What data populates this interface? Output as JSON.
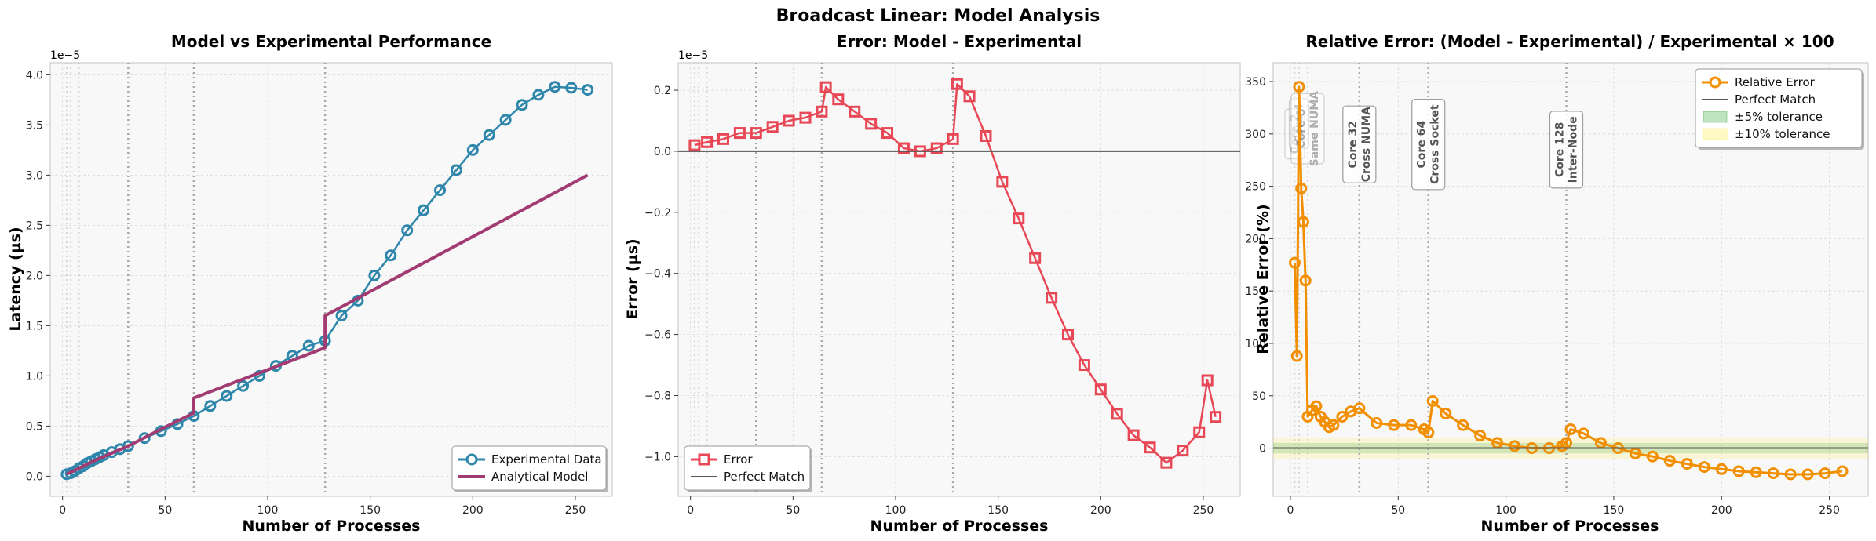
{
  "figure": {
    "suptitle": "Broadcast Linear: Model Analysis"
  },
  "colors": {
    "experimental": "#2e86ab",
    "model": "#a23b72",
    "error": "#e84855",
    "relative": "#f18f01",
    "perfect": "#555555",
    "panel_bg": "#f8f8f8",
    "marker_line": "#9e9e9e"
  },
  "chart_data": [
    {
      "type": "line",
      "title": "Model vs Experimental Performance",
      "xlabel": "Number of Processes",
      "ylabel": "Latency (µs)",
      "offset_text": "1e−5",
      "xlim": [
        -6,
        268
      ],
      "ylim": [
        -2e-06,
        4.12e-05
      ],
      "xticks": [
        0,
        50,
        100,
        150,
        200,
        250
      ],
      "yticks": [
        0,
        5e-06,
        1e-05,
        1.5e-05,
        2e-05,
        2.5e-05,
        3e-05,
        3.5e-05,
        4e-05
      ],
      "ytick_labels": [
        "0.0",
        "0.5",
        "1.0",
        "1.5",
        "2.0",
        "2.5",
        "3.0",
        "3.5",
        "4.0"
      ],
      "grid": true,
      "legend": {
        "position": "lower-right",
        "entries": [
          "Experimental Data",
          "Analytical Model"
        ]
      },
      "markers": [
        {
          "x": 2,
          "label": "Core 2",
          "tier": 3.5
        },
        {
          "x": 4,
          "label": "Core 4",
          "tier": 3.55
        },
        {
          "x": 8,
          "label": "Core 8\nSame NUMA",
          "tier": 3.5
        },
        {
          "x": 32,
          "label": "Core 32\nCross NUMA",
          "tier": 3.45
        },
        {
          "x": 64,
          "label": "Core 64\nCross Socket",
          "tier": 3.45
        },
        {
          "x": 128,
          "label": "Core 128\nInter-Node",
          "tier": 3.35
        }
      ],
      "series": [
        {
          "name": "Experimental Data",
          "x": [
            2,
            4,
            6,
            8,
            10,
            12,
            14,
            16,
            18,
            20,
            24,
            28,
            32,
            40,
            48,
            56,
            64,
            72,
            80,
            88,
            96,
            104,
            112,
            120,
            128,
            136,
            144,
            152,
            160,
            168,
            176,
            184,
            192,
            200,
            208,
            216,
            224,
            232,
            240,
            248,
            256
          ],
          "y": [
            2e-07,
            3e-07,
            5e-07,
            8e-07,
            1e-06,
            1.3e-06,
            1.5e-06,
            1.7e-06,
            1.9e-06,
            2.1e-06,
            2.4e-06,
            2.7e-06,
            3e-06,
            3.8e-06,
            4.5e-06,
            5.2e-06,
            6e-06,
            7e-06,
            8e-06,
            9e-06,
            1e-05,
            1.1e-05,
            1.2e-05,
            1.3e-05,
            1.35e-05,
            1.6e-05,
            1.75e-05,
            2e-05,
            2.2e-05,
            2.45e-05,
            2.65e-05,
            2.85e-05,
            3.05e-05,
            3.25e-05,
            3.4e-05,
            3.55e-05,
            3.7e-05,
            3.8e-05,
            3.88e-05,
            3.87e-05,
            3.85e-05
          ]
        },
        {
          "name": "Analytical Model",
          "x": [
            2,
            8,
            16,
            32,
            48,
            64,
            64,
            96,
            128,
            128,
            160,
            192,
            224,
            256
          ],
          "y": [
            2e-07,
            8e-07,
            1.6e-06,
            3e-06,
            4.7e-06,
            6.3e-06,
            7.8e-06,
            1.03e-05,
            1.28e-05,
            1.6e-05,
            1.95e-05,
            2.3e-05,
            2.65e-05,
            3e-05
          ]
        }
      ]
    },
    {
      "type": "line",
      "title": "Error: Model - Experimental",
      "xlabel": "Number of Processes",
      "ylabel": "Error (µs)",
      "offset_text": "1e−5",
      "xlim": [
        -6,
        268
      ],
      "ylim": [
        -1.13e-05,
        2.9e-06
      ],
      "xticks": [
        0,
        50,
        100,
        150,
        200,
        250
      ],
      "yticks": [
        -1e-05,
        -8e-06,
        -6e-06,
        -4e-06,
        -2e-06,
        0,
        2e-06
      ],
      "ytick_labels": [
        "−1.0",
        "−0.8",
        "−0.6",
        "−0.4",
        "−0.2",
        "0.0",
        "0.2"
      ],
      "grid": true,
      "legend": {
        "position": "lower-left",
        "entries": [
          "Error",
          "Perfect Match"
        ]
      },
      "markers": [
        {
          "x": 2,
          "label": "Core 2",
          "tier": 0.22
        },
        {
          "x": 4,
          "label": "Core 4",
          "tier": 0.24
        },
        {
          "x": 8,
          "label": "Core 8\nSame NUMA",
          "tier": 0.22
        },
        {
          "x": 32,
          "label": "Core 32\nCross NUMA",
          "tier": 0.22
        },
        {
          "x": 64,
          "label": "Core 64\nCross Socket",
          "tier": 0.22
        },
        {
          "x": 128,
          "label": "Core 128\nInter-Node",
          "tier": 0.24
        }
      ],
      "series": [
        {
          "name": "Error",
          "x": [
            2,
            8,
            16,
            24,
            32,
            40,
            48,
            56,
            64,
            66,
            72,
            80,
            88,
            96,
            104,
            112,
            120,
            128,
            130,
            136,
            144,
            152,
            160,
            168,
            176,
            184,
            192,
            200,
            208,
            216,
            224,
            232,
            240,
            248,
            252,
            256
          ],
          "y": [
            2e-07,
            3e-07,
            4e-07,
            6e-07,
            6e-07,
            8e-07,
            1e-06,
            1.1e-06,
            1.3e-06,
            2.1e-06,
            1.7e-06,
            1.3e-06,
            9e-07,
            6e-07,
            1e-07,
            0,
            1e-07,
            4e-07,
            2.2e-06,
            1.8e-06,
            5e-07,
            -1e-06,
            -2.2e-06,
            -3.5e-06,
            -4.8e-06,
            -6e-06,
            -7e-06,
            -7.8e-06,
            -8.6e-06,
            -9.3e-06,
            -9.7e-06,
            -1.02e-05,
            -9.8e-06,
            -9.2e-06,
            -7.5e-06,
            -8.7e-06
          ]
        },
        {
          "name": "Perfect Match",
          "x": [
            -6,
            268
          ],
          "y": [
            0,
            0
          ]
        }
      ]
    },
    {
      "type": "line",
      "title": "Relative Error: (Model - Experimental) / Experimental × 100",
      "xlabel": "Number of Processes",
      "ylabel": "Relative Error (%)",
      "offset_text": "",
      "xlim": [
        -8,
        268
      ],
      "ylim": [
        -46,
        368
      ],
      "xticks": [
        0,
        50,
        100,
        150,
        200,
        250
      ],
      "yticks": [
        0,
        50,
        100,
        150,
        200,
        250,
        300,
        350
      ],
      "ytick_labels": [
        "0",
        "50",
        "100",
        "150",
        "200",
        "250",
        "300",
        "350"
      ],
      "grid": true,
      "bands": [
        {
          "name": "±5% tolerance",
          "low": -5,
          "high": 5,
          "color": "#2ca02c",
          "opacity": 0.18
        },
        {
          "name": "±10% tolerance",
          "low": -10,
          "high": 10,
          "color": "#ffeb3b",
          "opacity": 0.18
        }
      ],
      "legend": {
        "position": "top-right",
        "entries": [
          "Relative Error",
          "Perfect Match",
          "±5% tolerance",
          "±10% tolerance"
        ]
      },
      "markers": [
        {
          "x": 2,
          "label": "Core 2",
          "tier": 300
        },
        {
          "x": 4,
          "label": "Core 4",
          "tier": 310
        },
        {
          "x": 8,
          "label": "Core 8\nSame NUMA",
          "tier": 305
        },
        {
          "x": 32,
          "label": "Core 32\nCross NUMA",
          "tier": 290
        },
        {
          "x": 64,
          "label": "Core 64\nCross Socket",
          "tier": 290
        },
        {
          "x": 128,
          "label": "Core 128\nInter-Node",
          "tier": 285
        }
      ],
      "series": [
        {
          "name": "Relative Error",
          "x": [
            2,
            3,
            4,
            5,
            6,
            7,
            8,
            10,
            12,
            14,
            16,
            18,
            20,
            24,
            28,
            32,
            40,
            48,
            56,
            62,
            64,
            66,
            72,
            80,
            88,
            96,
            104,
            112,
            120,
            126,
            128,
            130,
            136,
            144,
            152,
            160,
            168,
            176,
            184,
            192,
            200,
            208,
            216,
            224,
            232,
            240,
            248,
            256
          ],
          "y": [
            177,
            88,
            345,
            248,
            216,
            160,
            30,
            36,
            40,
            30,
            25,
            20,
            22,
            30,
            35,
            38,
            24,
            22,
            22,
            18,
            15,
            45,
            33,
            22,
            12,
            5,
            2,
            0,
            0,
            2,
            5,
            18,
            14,
            5,
            0,
            -5,
            -8,
            -12,
            -15,
            -18,
            -20,
            -22,
            -23,
            -24,
            -25,
            -25,
            -24,
            -22
          ]
        },
        {
          "name": "Perfect Match",
          "x": [
            -8,
            268
          ],
          "y": [
            0,
            0
          ]
        }
      ]
    }
  ]
}
